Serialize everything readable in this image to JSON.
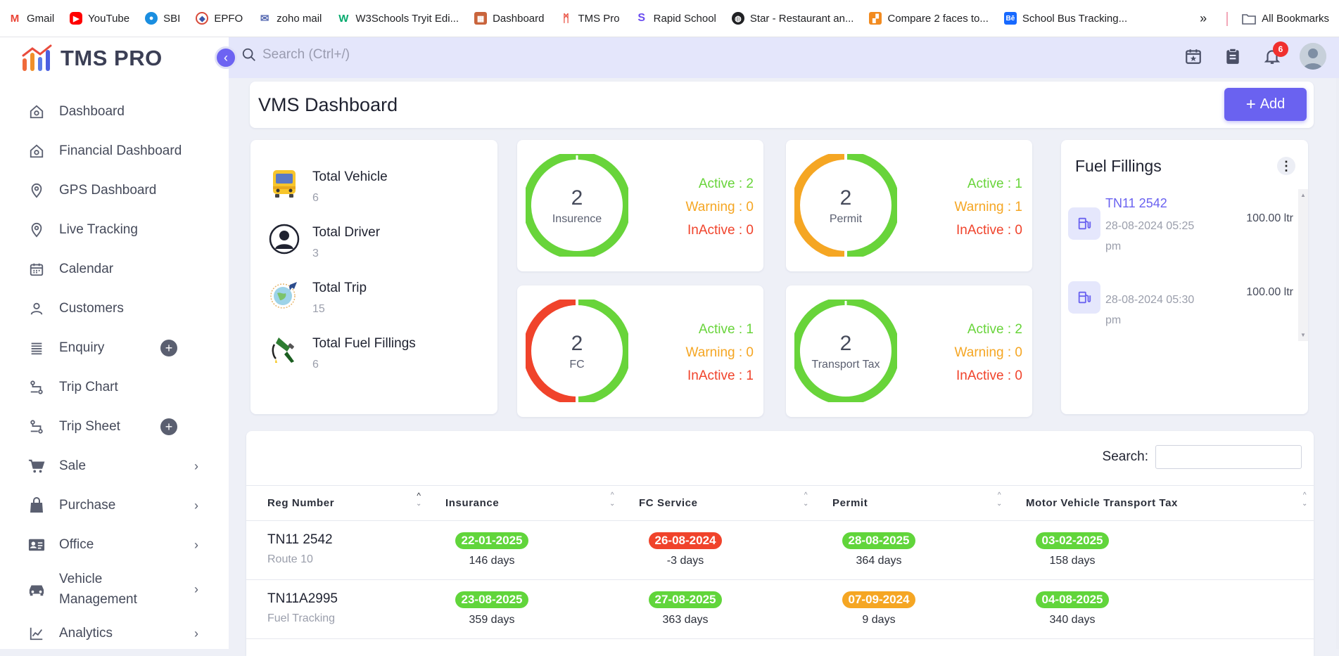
{
  "bookmarks": [
    {
      "label": "Gmail",
      "icon": "gmail-icon",
      "color": "#ea4335"
    },
    {
      "label": "YouTube",
      "icon": "youtube-icon",
      "color": "#ff0000"
    },
    {
      "label": "SBI",
      "icon": "sbi-icon",
      "color": "#1a8ee0"
    },
    {
      "label": "EPFO",
      "icon": "epfo-icon",
      "color": "#3a56a8"
    },
    {
      "label": "zoho mail",
      "icon": "zoho-mail-icon",
      "color": "#5a6db3"
    },
    {
      "label": "W3Schools Tryit Edi...",
      "icon": "w3schools-icon",
      "color": "#04aa6d"
    },
    {
      "label": "Dashboard",
      "icon": "dashboard-favicon",
      "color": "#c9643c"
    },
    {
      "label": "TMS Pro",
      "icon": "tms-pro-favicon",
      "color": "#e94c3d"
    },
    {
      "label": "Rapid School",
      "icon": "rapid-school-icon",
      "color": "#6a4cf0"
    },
    {
      "label": "Star - Restaurant an...",
      "icon": "globe-icon",
      "color": "#202124"
    },
    {
      "label": "Compare 2 faces to...",
      "icon": "compare-faces-icon",
      "color": "#f28b20"
    },
    {
      "label": "School Bus Tracking...",
      "icon": "behance-icon",
      "color": "#1769ff"
    }
  ],
  "bookmarks_right": {
    "more": "»",
    "all_bookmarks": "All Bookmarks"
  },
  "app": {
    "name": "TMS PRO"
  },
  "sidebar": {
    "items": [
      {
        "label": "Dashboard",
        "icon": "home-icon"
      },
      {
        "label": "Financial Dashboard",
        "icon": "home-icon"
      },
      {
        "label": "GPS Dashboard",
        "icon": "location-pin-icon"
      },
      {
        "label": "Live Tracking",
        "icon": "location-pin-icon"
      },
      {
        "label": "Calendar",
        "icon": "calendar-icon"
      },
      {
        "label": "Customers",
        "icon": "user-icon"
      },
      {
        "label": "Enquiry",
        "icon": "list-icon",
        "has_add": true
      },
      {
        "label": "Trip Chart",
        "icon": "route-icon"
      },
      {
        "label": "Trip Sheet",
        "icon": "route-icon",
        "has_add": true
      },
      {
        "label": "Sale",
        "icon": "cart-icon",
        "has_arrow": true
      },
      {
        "label": "Purchase",
        "icon": "bag-icon",
        "has_arrow": true
      },
      {
        "label": "Office",
        "icon": "id-card-icon",
        "has_arrow": true
      },
      {
        "label": "Vehicle Management",
        "icon": "car-icon",
        "has_arrow": true
      },
      {
        "label": "Analytics",
        "icon": "chart-line-icon",
        "has_arrow": true
      }
    ]
  },
  "header": {
    "search_placeholder": "Search (Ctrl+/)",
    "notification_count": "6"
  },
  "page": {
    "title": "VMS Dashboard",
    "add_label": "Add"
  },
  "stats": [
    {
      "name": "Total Vehicle",
      "value": "6",
      "icon": "bus-icon"
    },
    {
      "name": "Total Driver",
      "value": "3",
      "icon": "driver-icon"
    },
    {
      "name": "Total Trip",
      "value": "15",
      "icon": "trip-globe-icon"
    },
    {
      "name": "Total Fuel Fillings",
      "value": "6",
      "icon": "fuel-nozzle-icon"
    }
  ],
  "rings": [
    {
      "label": "Insurence",
      "total": "2",
      "active_label": "Active :",
      "active": "2",
      "warning_label": "Warning :",
      "warning": "0",
      "inactive_label": "InActive :",
      "inactive": "0"
    },
    {
      "label": "Permit",
      "total": "2",
      "active_label": "Active :",
      "active": "1",
      "warning_label": "Warning :",
      "warning": "1",
      "inactive_label": "InActive :",
      "inactive": "0"
    },
    {
      "label": "FC",
      "total": "2",
      "active_label": "Active :",
      "active": "1",
      "warning_label": "Warning :",
      "warning": "0",
      "inactive_label": "InActive :",
      "inactive": "1"
    },
    {
      "label": "Transport Tax",
      "total": "2",
      "active_label": "Active :",
      "active": "2",
      "warning_label": "Warning :",
      "warning": "0",
      "inactive_label": "InActive :",
      "inactive": "0"
    }
  ],
  "colors": {
    "active": "#68d43a",
    "warning": "#f5a623",
    "inactive": "#f0432b",
    "accent": "#6a62f0"
  },
  "fuel": {
    "title": "Fuel Fillings",
    "items": [
      {
        "reg": "TN11 2542",
        "date": "28-08-2024 05:25 pm",
        "qty": "100.00 ltr"
      },
      {
        "reg": "",
        "date": "28-08-2024 05:30 pm",
        "qty": "100.00 ltr"
      }
    ]
  },
  "table": {
    "search_label": "Search:",
    "columns": [
      "Reg Number",
      "Insurance",
      "FC Service",
      "Permit",
      "Motor Vehicle Transport Tax"
    ],
    "rows": [
      {
        "reg": "TN11 2542",
        "route": "Route 10",
        "cells": [
          {
            "date": "22-01-2025",
            "days": "146 days",
            "status": "green"
          },
          {
            "date": "26-08-2024",
            "days": "-3 days",
            "status": "red"
          },
          {
            "date": "28-08-2025",
            "days": "364 days",
            "status": "green"
          },
          {
            "date": "03-02-2025",
            "days": "158 days",
            "status": "green"
          }
        ]
      },
      {
        "reg": "TN11A2995",
        "route": "Fuel Tracking",
        "cells": [
          {
            "date": "23-08-2025",
            "days": "359 days",
            "status": "green"
          },
          {
            "date": "27-08-2025",
            "days": "363 days",
            "status": "green"
          },
          {
            "date": "07-09-2024",
            "days": "9 days",
            "status": "orange"
          },
          {
            "date": "04-08-2025",
            "days": "340 days",
            "status": "green"
          }
        ]
      }
    ]
  }
}
